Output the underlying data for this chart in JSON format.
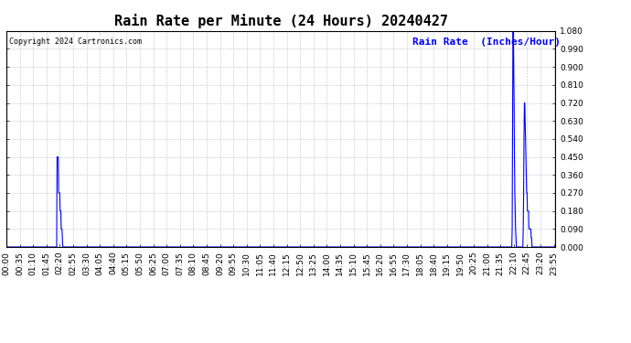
{
  "title": "Rain Rate per Minute (24 Hours) 20240427",
  "ylabel": "Rain Rate  (Inches/Hour)",
  "copyright": "Copyright 2024 Cartronics.com",
  "line_color": "blue",
  "background_color": "#ffffff",
  "grid_color": "#c0c0d0",
  "ymin": 0.0,
  "ymax": 1.08,
  "ytick_step": 0.09,
  "title_fontsize": 11,
  "label_fontsize": 8,
  "tick_fontsize": 6.5
}
